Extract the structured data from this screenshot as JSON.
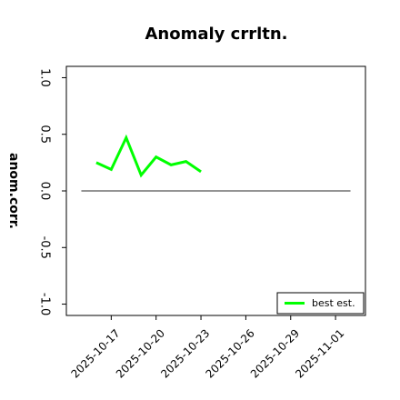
{
  "chart_data": {
    "type": "line",
    "title": "Anomaly crrltn.",
    "y_label": "anom.corr.",
    "x": [
      "2025-10-16",
      "2025-10-17",
      "2025-10-18",
      "2025-10-19",
      "2025-10-20",
      "2025-10-21",
      "2025-10-22",
      "2025-10-23"
    ],
    "series": [
      {
        "name": "best est.",
        "color": "#00ff00",
        "values": [
          0.25,
          0.19,
          0.47,
          0.14,
          0.3,
          0.23,
          0.26,
          0.17
        ]
      }
    ],
    "reference_line": {
      "y": 0,
      "x": [
        "2025-10-15",
        "2025-11-02"
      ],
      "color": "#555555"
    },
    "xlim": [
      "2025-10-14",
      "2025-11-03"
    ],
    "xticks": [
      "2025-10-17",
      "2025-10-20",
      "2025-10-23",
      "2025-10-26",
      "2025-10-29",
      "2025-11-01"
    ],
    "highlight_xtick": "2025-10-23",
    "highlight_color": "#228b22",
    "ylim": [
      -1.1,
      1.1
    ],
    "yticks": [
      {
        "value": -1,
        "label": "-1.0"
      },
      {
        "value": -0.5,
        "label": "-0.5"
      },
      {
        "value": 0,
        "label": "0.0"
      },
      {
        "value": 0.5,
        "label": "0.5"
      },
      {
        "value": 1,
        "label": "1.0"
      }
    ],
    "grid": false,
    "legend": "lower right"
  }
}
